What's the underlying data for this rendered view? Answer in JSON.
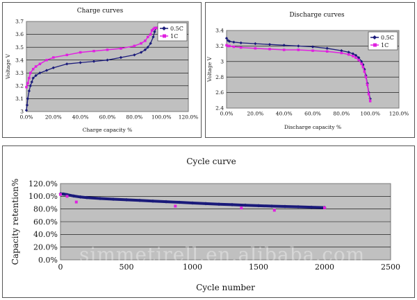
{
  "colors": {
    "series_a": "#1a1a7a",
    "series_b": "#e020e0",
    "plot_bg": "#c0c0c0",
    "grid": "#000000"
  },
  "watermark": "simmetirell.en.alibaba.com",
  "chart_data": [
    {
      "type": "line",
      "title": "Charge curves",
      "xlabel": "Charge capacity %",
      "ylabel": "Voltage V",
      "xlim": [
        0,
        120
      ],
      "ylim": [
        3,
        3.7
      ],
      "xticks": [
        0,
        20,
        40,
        60,
        80,
        100,
        120
      ],
      "xtick_labels": [
        "0.0%",
        "20.0%",
        "40.0%",
        "60.0%",
        "80.0%",
        "100.0%",
        "120.0%"
      ],
      "yticks": [
        3,
        3.1,
        3.2,
        3.3,
        3.4,
        3.5,
        3.6,
        3.7
      ],
      "ytick_labels": [
        "3",
        "3.1",
        "3.2",
        "3.3",
        "3.4",
        "3.5",
        "3.6",
        "3.7"
      ],
      "grid": true,
      "legend": "top-right",
      "series": [
        {
          "name": "0.5C",
          "color_key": "series_a",
          "marker": "diamond",
          "x": [
            0,
            0.5,
            1,
            2,
            3,
            4,
            5,
            7,
            10,
            15,
            20,
            30,
            40,
            50,
            60,
            70,
            80,
            85,
            88,
            90,
            92,
            94,
            95,
            96,
            97,
            98
          ],
          "y": [
            3.01,
            3.05,
            3.1,
            3.16,
            3.2,
            3.23,
            3.26,
            3.28,
            3.3,
            3.32,
            3.34,
            3.37,
            3.38,
            3.39,
            3.4,
            3.42,
            3.44,
            3.46,
            3.48,
            3.5,
            3.53,
            3.58,
            3.62,
            3.65,
            3.65,
            3.65
          ]
        },
        {
          "name": "1C",
          "color_key": "series_b",
          "marker": "square",
          "x": [
            0,
            1,
            2,
            3,
            5,
            7,
            10,
            15,
            20,
            30,
            40,
            50,
            60,
            70,
            80,
            85,
            88,
            90,
            92,
            93,
            94,
            95,
            96,
            97,
            98,
            99,
            100
          ],
          "y": [
            3.19,
            3.22,
            3.26,
            3.3,
            3.33,
            3.35,
            3.37,
            3.4,
            3.42,
            3.44,
            3.46,
            3.47,
            3.48,
            3.49,
            3.51,
            3.53,
            3.55,
            3.58,
            3.6,
            3.63,
            3.64,
            3.65,
            3.65,
            3.65,
            3.65,
            3.65,
            3.65
          ]
        }
      ]
    },
    {
      "type": "line",
      "title": "Discharge curves",
      "xlabel": "Discharge capacity %",
      "ylabel": "Voltage V",
      "xlim": [
        0,
        120
      ],
      "ylim": [
        2.4,
        3.4
      ],
      "xticks": [
        0,
        20,
        40,
        60,
        80,
        100,
        120
      ],
      "xtick_labels": [
        "0.0%",
        "20.0%",
        "40.0%",
        "60.0%",
        "80.0%",
        "100.0%",
        "120.0%"
      ],
      "yticks": [
        2.4,
        2.6,
        2.8,
        3,
        3.2,
        3.4
      ],
      "ytick_labels": [
        "2.4",
        "2.6",
        "2.8",
        "3",
        "3.2",
        "3.4"
      ],
      "grid": true,
      "legend": "top-right",
      "series": [
        {
          "name": "0.5C",
          "color_key": "series_a",
          "marker": "diamond",
          "x": [
            0,
            1,
            2,
            5,
            10,
            20,
            30,
            40,
            50,
            60,
            70,
            80,
            85,
            88,
            90,
            92,
            94,
            95,
            96,
            97,
            98,
            99,
            100
          ],
          "y": [
            3.3,
            3.27,
            3.26,
            3.25,
            3.24,
            3.23,
            3.22,
            3.21,
            3.2,
            3.19,
            3.17,
            3.14,
            3.12,
            3.1,
            3.08,
            3.05,
            3.0,
            2.96,
            2.9,
            2.82,
            2.72,
            2.6,
            2.52
          ]
        },
        {
          "name": "1C",
          "color_key": "series_b",
          "marker": "square",
          "x": [
            0,
            1,
            2,
            5,
            10,
            20,
            30,
            40,
            50,
            60,
            70,
            80,
            85,
            88,
            90,
            92,
            94,
            95,
            96,
            97,
            98,
            99,
            100
          ],
          "y": [
            3.21,
            3.2,
            3.2,
            3.19,
            3.18,
            3.17,
            3.16,
            3.15,
            3.15,
            3.14,
            3.13,
            3.11,
            3.09,
            3.07,
            3.05,
            3.02,
            2.97,
            2.93,
            2.87,
            2.8,
            2.7,
            2.58,
            2.49
          ]
        }
      ]
    },
    {
      "type": "line",
      "title": "Cycle curve",
      "xlabel": "Cycle number",
      "ylabel": "Capacity retention%",
      "xlim": [
        0,
        2500
      ],
      "ylim": [
        0,
        120
      ],
      "xticks": [
        0,
        500,
        1000,
        1500,
        2000,
        2500
      ],
      "xtick_labels": [
        "0",
        "500",
        "1000",
        "1500",
        "2000",
        "2500"
      ],
      "yticks": [
        0,
        20,
        40,
        60,
        80,
        100,
        120
      ],
      "ytick_labels": [
        "0.0%",
        "20.0%",
        "40.0%",
        "60.0%",
        "80.0%",
        "100.0%",
        "120.0%"
      ],
      "grid": true,
      "legend": "none",
      "series": [
        {
          "color_key": "series_a",
          "marker": "diamond",
          "x": [
            0,
            25,
            50,
            100,
            150,
            200,
            300,
            400,
            500,
            600,
            700,
            800,
            900,
            1000,
            1100,
            1200,
            1300,
            1400,
            1500,
            1600,
            1700,
            1800,
            1900,
            2000
          ],
          "y": [
            104,
            103.5,
            102.5,
            100.5,
            99,
            98,
            96.5,
            95.5,
            94.5,
            93.5,
            92.5,
            91.5,
            90.5,
            89.5,
            88.5,
            87.5,
            86.8,
            86,
            85.2,
            84.6,
            84,
            83.4,
            82.8,
            82.3
          ]
        },
        {
          "color_key": "series_b",
          "marker": "square",
          "x": [
            0,
            50,
            120,
            870,
            1370,
            1620,
            2000
          ],
          "y": [
            103,
            100,
            91,
            84.5,
            81.5,
            78,
            82
          ]
        }
      ]
    }
  ]
}
